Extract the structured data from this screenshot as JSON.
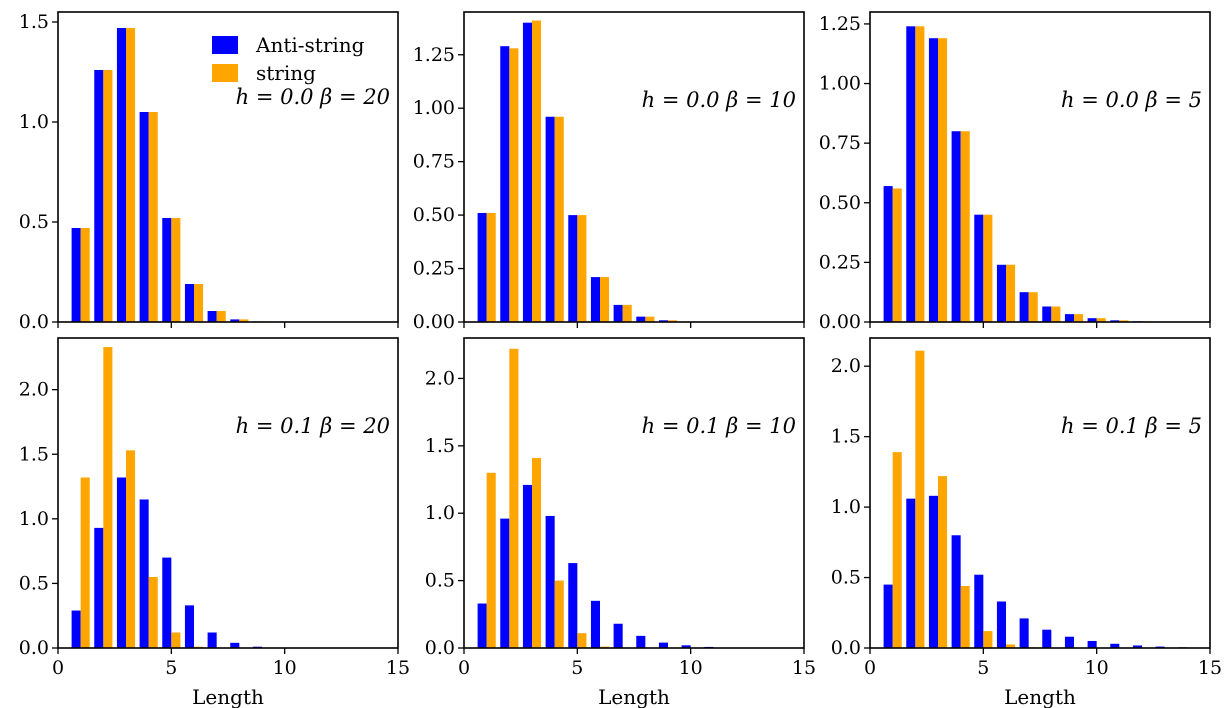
{
  "colors": {
    "anti_string": "#0000ff",
    "string": "#ffa500"
  },
  "legend": {
    "items": [
      "Anti-string",
      "string"
    ],
    "placement": "upper-right of first panel"
  },
  "chart_data": [
    {
      "type": "bar",
      "id": "p0",
      "annotation": "h = 0.0 β = 20",
      "xlabel": "",
      "xlim": [
        0,
        15
      ],
      "ylim": [
        0,
        1.55
      ],
      "yticks": [
        0.0,
        0.5,
        1.0,
        1.5
      ],
      "ytick_labels": [
        "0.0",
        "0.5",
        "1.0",
        "1.5"
      ],
      "xticks": [
        0,
        5,
        10,
        15
      ],
      "xtick_labels": [],
      "x": [
        1,
        2,
        3,
        4,
        5,
        6,
        7,
        8,
        9
      ],
      "series": [
        {
          "name": "Anti-string",
          "values": [
            0.47,
            1.26,
            1.47,
            1.05,
            0.52,
            0.19,
            0.055,
            0.013,
            0.003
          ]
        },
        {
          "name": "string",
          "values": [
            0.47,
            1.26,
            1.47,
            1.05,
            0.52,
            0.19,
            0.055,
            0.013,
            0.003
          ]
        }
      ]
    },
    {
      "type": "bar",
      "id": "p1",
      "annotation": "h = 0.0 β = 10",
      "xlabel": "",
      "xlim": [
        0,
        15
      ],
      "ylim": [
        0,
        1.45
      ],
      "yticks": [
        0.0,
        0.25,
        0.5,
        0.75,
        1.0,
        1.25
      ],
      "ytick_labels": [
        "0.00",
        "0.25",
        "0.50",
        "0.75",
        "1.00",
        "1.25"
      ],
      "xticks": [
        0,
        5,
        10,
        15
      ],
      "xtick_labels": [],
      "x": [
        1,
        2,
        3,
        4,
        5,
        6,
        7,
        8,
        9,
        10
      ],
      "series": [
        {
          "name": "Anti-string",
          "values": [
            0.51,
            1.29,
            1.4,
            0.96,
            0.5,
            0.21,
            0.08,
            0.025,
            0.008,
            0.002
          ]
        },
        {
          "name": "string",
          "values": [
            0.51,
            1.28,
            1.41,
            0.96,
            0.5,
            0.21,
            0.08,
            0.025,
            0.008,
            0.002
          ]
        }
      ]
    },
    {
      "type": "bar",
      "id": "p2",
      "annotation": "h = 0.0 β = 5",
      "xlabel": "",
      "xlim": [
        0,
        15
      ],
      "ylim": [
        0,
        1.3
      ],
      "yticks": [
        0.0,
        0.25,
        0.5,
        0.75,
        1.0,
        1.25
      ],
      "ytick_labels": [
        "0.00",
        "0.25",
        "0.50",
        "0.75",
        "1.00",
        "1.25"
      ],
      "xticks": [
        0,
        5,
        10,
        15
      ],
      "xtick_labels": [],
      "x": [
        1,
        2,
        3,
        4,
        5,
        6,
        7,
        8,
        9,
        10,
        11,
        12
      ],
      "series": [
        {
          "name": "Anti-string",
          "values": [
            0.57,
            1.24,
            1.19,
            0.8,
            0.45,
            0.24,
            0.125,
            0.065,
            0.033,
            0.016,
            0.007,
            0.003
          ]
        },
        {
          "name": "string",
          "values": [
            0.56,
            1.24,
            1.19,
            0.8,
            0.45,
            0.24,
            0.125,
            0.065,
            0.033,
            0.016,
            0.007,
            0.003
          ]
        }
      ]
    },
    {
      "type": "bar",
      "id": "p3",
      "annotation": "h = 0.1 β = 20",
      "xlabel": "Length",
      "xlim": [
        0,
        15
      ],
      "ylim": [
        0,
        2.4
      ],
      "yticks": [
        0.0,
        0.5,
        1.0,
        1.5,
        2.0
      ],
      "ytick_labels": [
        "0.0",
        "0.5",
        "1.0",
        "1.5",
        "2.0"
      ],
      "xticks": [
        0,
        5,
        10,
        15
      ],
      "xtick_labels": [
        "0",
        "5",
        "10",
        "15"
      ],
      "x": [
        1,
        2,
        3,
        4,
        5,
        6,
        7,
        8,
        9
      ],
      "series": [
        {
          "name": "Anti-string",
          "values": [
            0.29,
            0.93,
            1.32,
            1.15,
            0.7,
            0.33,
            0.12,
            0.04,
            0.01
          ]
        },
        {
          "name": "string",
          "values": [
            1.32,
            2.33,
            1.53,
            0.55,
            0.12,
            0.01,
            0.0,
            0.0,
            0.0
          ]
        }
      ]
    },
    {
      "type": "bar",
      "id": "p4",
      "annotation": "h = 0.1 β = 10",
      "xlabel": "Length",
      "xlim": [
        0,
        15
      ],
      "ylim": [
        0,
        2.3
      ],
      "yticks": [
        0.0,
        0.5,
        1.0,
        1.5,
        2.0
      ],
      "ytick_labels": [
        "0.0",
        "0.5",
        "1.0",
        "1.5",
        "2.0"
      ],
      "xticks": [
        0,
        5,
        10,
        15
      ],
      "xtick_labels": [
        "0",
        "5",
        "10",
        "15"
      ],
      "x": [
        1,
        2,
        3,
        4,
        5,
        6,
        7,
        8,
        9,
        10,
        11
      ],
      "series": [
        {
          "name": "Anti-string",
          "values": [
            0.33,
            0.96,
            1.21,
            0.98,
            0.63,
            0.35,
            0.18,
            0.09,
            0.04,
            0.02,
            0.008
          ]
        },
        {
          "name": "string",
          "values": [
            1.3,
            2.22,
            1.41,
            0.5,
            0.11,
            0.01,
            0.0,
            0.0,
            0.0,
            0.0,
            0.0
          ]
        }
      ]
    },
    {
      "type": "bar",
      "id": "p5",
      "annotation": "h = 0.1 β = 5",
      "xlabel": "Length",
      "xlim": [
        0,
        15
      ],
      "ylim": [
        0,
        2.2
      ],
      "yticks": [
        0.0,
        0.5,
        1.0,
        1.5,
        2.0
      ],
      "ytick_labels": [
        "0.0",
        "0.5",
        "1.0",
        "1.5",
        "2.0"
      ],
      "xticks": [
        0,
        5,
        10,
        15
      ],
      "xtick_labels": [
        "0",
        "5",
        "10",
        "15"
      ],
      "x": [
        1,
        2,
        3,
        4,
        5,
        6,
        7,
        8,
        9,
        10,
        11,
        12,
        13,
        14
      ],
      "series": [
        {
          "name": "Anti-string",
          "values": [
            0.45,
            1.06,
            1.08,
            0.8,
            0.52,
            0.33,
            0.21,
            0.13,
            0.08,
            0.05,
            0.03,
            0.018,
            0.01,
            0.005
          ]
        },
        {
          "name": "string",
          "values": [
            1.39,
            2.11,
            1.22,
            0.44,
            0.12,
            0.025,
            0.005,
            0.0,
            0.0,
            0.0,
            0.0,
            0.0,
            0.0,
            0.0
          ]
        }
      ]
    }
  ]
}
